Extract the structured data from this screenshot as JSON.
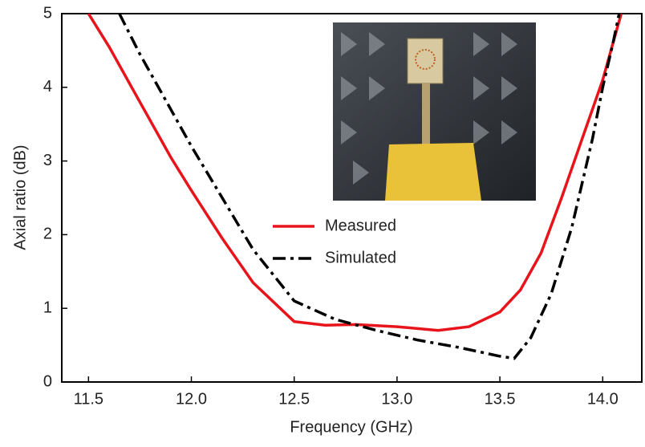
{
  "chart_data": {
    "type": "line",
    "xlabel": "Frequency (GHz)",
    "ylabel": "Axial ratio (dB)",
    "xlim": [
      11.37,
      14.19
    ],
    "ylim": [
      0,
      5
    ],
    "xticks": [
      11.5,
      {
        "value": 12,
        "label": "12.0"
      },
      12.5,
      {
        "value": 13,
        "label": "13.0"
      },
      13.5,
      {
        "value": 14,
        "label": "14.0"
      }
    ],
    "yticks": [
      0,
      1,
      2,
      3,
      4,
      5
    ],
    "series": [
      {
        "name": "Measured",
        "color": "#e8141b",
        "linestyle": "solid",
        "x": [
          11.5,
          11.6,
          11.75,
          11.9,
          12.0,
          12.15,
          12.3,
          12.5,
          12.65,
          12.8,
          13.0,
          13.2,
          13.35,
          13.5,
          13.6,
          13.7,
          13.8,
          13.9,
          14.0,
          14.05,
          14.09
        ],
        "values": [
          5,
          4.55,
          3.8,
          3.05,
          2.6,
          1.95,
          1.35,
          0.82,
          0.77,
          0.78,
          0.75,
          0.7,
          0.75,
          0.95,
          1.25,
          1.75,
          2.5,
          3.3,
          4.1,
          4.6,
          5
        ]
      },
      {
        "name": "Simulated",
        "color": "#000000",
        "linestyle": "dashdot",
        "x": [
          11.65,
          11.75,
          11.9,
          12.0,
          12.15,
          12.3,
          12.5,
          12.7,
          12.9,
          13.1,
          13.3,
          13.5,
          13.57,
          13.65,
          13.75,
          13.85,
          13.95,
          14.0,
          14.05,
          14.08
        ],
        "values": [
          5,
          4.45,
          3.7,
          3.2,
          2.5,
          1.8,
          1.1,
          0.85,
          0.7,
          0.57,
          0.47,
          0.35,
          0.32,
          0.6,
          1.2,
          2.1,
          3.3,
          4.0,
          4.6,
          5
        ]
      }
    ]
  }
}
